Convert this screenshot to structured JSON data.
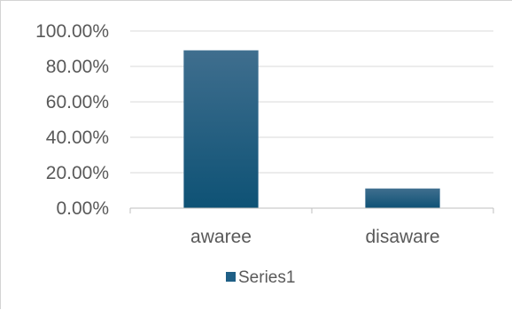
{
  "chart_data": {
    "type": "bar",
    "categories": [
      "awaree",
      "disaware"
    ],
    "series": [
      {
        "name": "Series1",
        "values": [
          0.89,
          0.11
        ],
        "color": "#1f5f86"
      }
    ],
    "ylim": [
      0,
      1
    ],
    "yticks": [
      0,
      0.2,
      0.4,
      0.6,
      0.8,
      1
    ],
    "ytick_labels": [
      "0.00%",
      "20.00%",
      "40.00%",
      "60.00%",
      "80.00%",
      "100.00%"
    ],
    "grid": true,
    "legend_position": "bottom"
  },
  "colors": {
    "bar_top": "#3f6e8e",
    "bar_bottom": "#0e5275",
    "gridline": "#d9d9d9",
    "axis_line": "#bfbfbf",
    "text": "#595959"
  }
}
